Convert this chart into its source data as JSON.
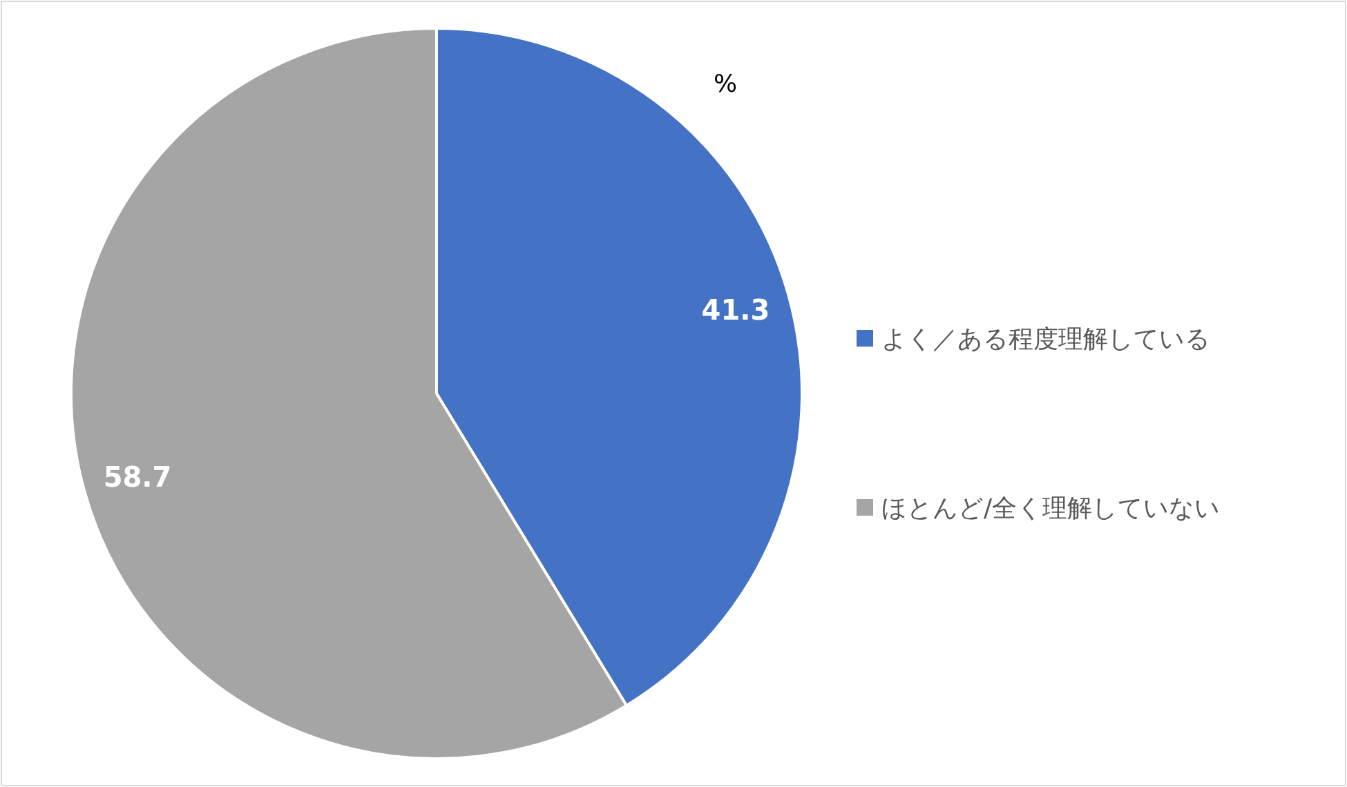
{
  "chart_data": {
    "type": "pie",
    "annotations": [
      "%"
    ],
    "categories": [
      "よく／ある程度理解している",
      "ほとんど/全く理解していない"
    ],
    "values": [
      41.3,
      58.7
    ],
    "colors": [
      "#4472c4",
      "#a5a5a5"
    ],
    "data_labels": true,
    "legend": "right"
  }
}
